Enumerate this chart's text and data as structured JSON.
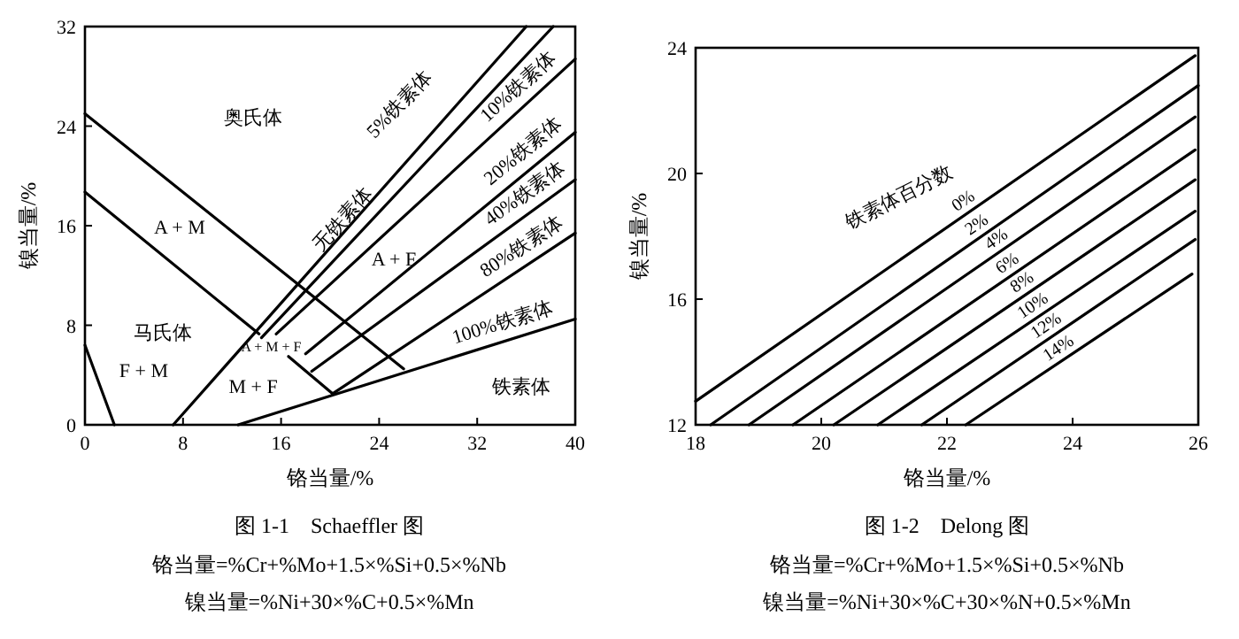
{
  "chart_data": [
    {
      "type": "line",
      "title": "图 1-1　Schaeffler 图",
      "xlabel": "铬当量/%",
      "ylabel": "镍当量/%",
      "xlim": [
        0,
        40
      ],
      "ylim": [
        0,
        32
      ],
      "xticks": [
        0,
        8,
        16,
        24,
        32,
        40
      ],
      "yticks": [
        0,
        8,
        16,
        24,
        32
      ],
      "series": [
        {
          "color": "#000000",
          "x": [
            0,
            26
          ],
          "values": [
            25,
            4.5
          ]
        },
        {
          "color": "#000000",
          "x": [
            0,
            14.2
          ],
          "values": [
            18.7,
            7.3
          ]
        },
        {
          "color": "#000000",
          "x": [
            0,
            2.4
          ],
          "values": [
            6.4,
            0
          ]
        },
        {
          "color": "#000000",
          "x": [
            16.6,
            20.2
          ],
          "values": [
            5.5,
            2.5
          ]
        },
        {
          "name": "无铁素体",
          "color": "#000000",
          "x": [
            7.2,
            36
          ],
          "values": [
            0,
            32
          ]
        },
        {
          "name": "5%铁素体",
          "color": "#000000",
          "x": [
            14.4,
            38.2
          ],
          "values": [
            7,
            32
          ]
        },
        {
          "name": "10%铁素体",
          "color": "#000000",
          "x": [
            15.6,
            40
          ],
          "values": [
            7.3,
            29.4
          ]
        },
        {
          "name": "20%铁素体",
          "color": "#000000",
          "x": [
            18,
            40
          ],
          "values": [
            5.7,
            23.5
          ]
        },
        {
          "name": "40%铁素体",
          "color": "#000000",
          "x": [
            18.5,
            40
          ],
          "values": [
            4.3,
            19.7
          ]
        },
        {
          "name": "80%铁素体",
          "color": "#000000",
          "x": [
            20.2,
            40
          ],
          "values": [
            2.5,
            15.4
          ]
        },
        {
          "name": "100%铁素体",
          "color": "#000000",
          "x": [
            12.5,
            40
          ],
          "values": [
            0,
            8.5
          ]
        }
      ],
      "annotations": [
        "奥氏体",
        "A + M",
        "马氏体",
        "F + M",
        "A + M + F",
        "M + F",
        "A + F",
        "铁素体",
        "铬当量=%Cr+%Mo+1.5×%Si+0.5×%Nb",
        "镍当量=%Ni+30×%C+0.5×%Mn"
      ]
    },
    {
      "type": "line",
      "title": "图 1-2　Delong 图",
      "xlabel": "铬当量/%",
      "ylabel": "镍当量/%",
      "xlim": [
        18,
        26
      ],
      "ylim": [
        12,
        24
      ],
      "xticks": [
        18,
        20,
        22,
        24,
        26
      ],
      "yticks": [
        12,
        16,
        20,
        24
      ],
      "series": [
        {
          "name": "0%",
          "color": "#000000",
          "x": [
            18,
            25.95
          ],
          "values": [
            12.75,
            23.75
          ]
        },
        {
          "name": "2%",
          "color": "#000000",
          "x": [
            18.24,
            26
          ],
          "values": [
            12,
            22.8
          ]
        },
        {
          "name": "4%",
          "color": "#000000",
          "x": [
            18.85,
            25.95
          ],
          "values": [
            12,
            21.8
          ]
        },
        {
          "name": "6%",
          "color": "#000000",
          "x": [
            19.55,
            25.95
          ],
          "values": [
            12,
            20.75
          ]
        },
        {
          "name": "8%",
          "color": "#000000",
          "x": [
            20.2,
            25.95
          ],
          "values": [
            12,
            19.8
          ]
        },
        {
          "name": "10%",
          "color": "#000000",
          "x": [
            20.9,
            25.95
          ],
          "values": [
            12,
            18.8
          ]
        },
        {
          "name": "12%",
          "color": "#000000",
          "x": [
            21.6,
            25.95
          ],
          "values": [
            12,
            17.9
          ]
        },
        {
          "name": "14%",
          "color": "#000000",
          "x": [
            22.3,
            25.9
          ],
          "values": [
            12,
            16.8
          ]
        }
      ],
      "annotations": [
        "铁素体百分数",
        "铬当量=%Cr+%Mo+1.5×%Si+0.5×%Nb",
        "镍当量=%Ni+30×%C+30×%N+0.5×%Mn"
      ]
    }
  ]
}
